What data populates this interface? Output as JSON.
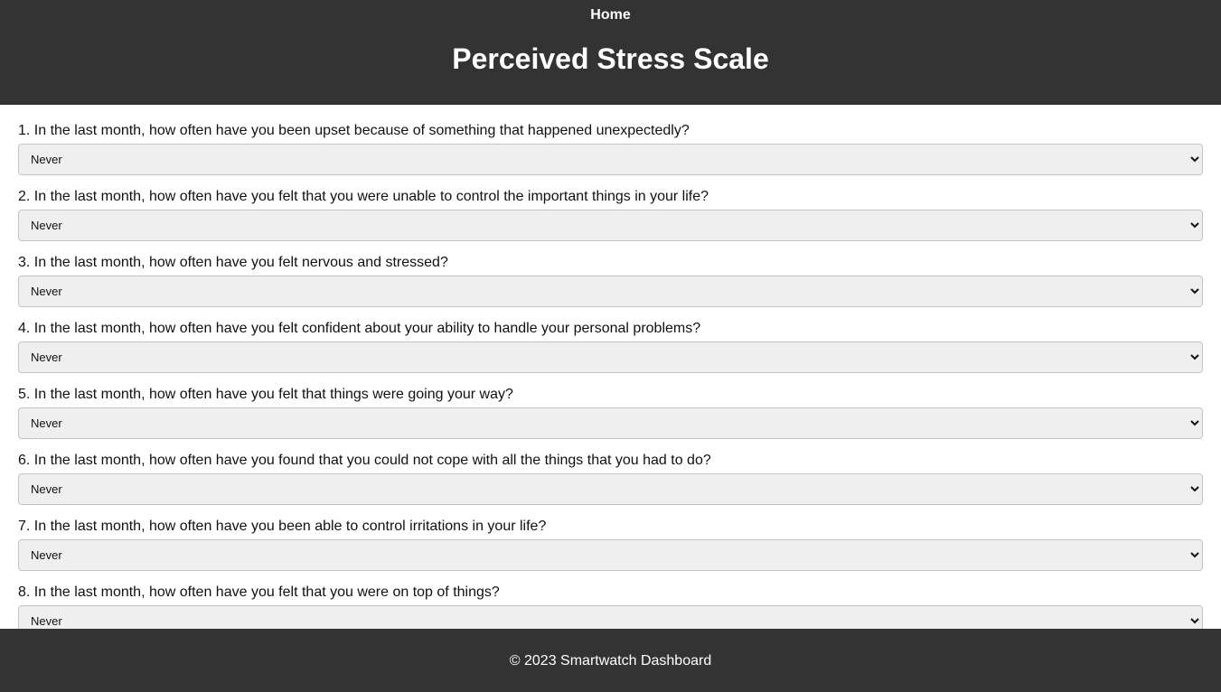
{
  "nav": {
    "home_label": "Home"
  },
  "page": {
    "title": "Perceived Stress Scale"
  },
  "questions": [
    {
      "text": "1. In the last month, how often have you been upset because of something that happened unexpectedly?",
      "selected": "Never"
    },
    {
      "text": "2. In the last month, how often have you felt that you were unable to control the important things in your life?",
      "selected": "Never"
    },
    {
      "text": "3. In the last month, how often have you felt nervous and stressed?",
      "selected": "Never"
    },
    {
      "text": "4. In the last month, how often have you felt confident about your ability to handle your personal problems?",
      "selected": "Never"
    },
    {
      "text": "5. In the last month, how often have you felt that things were going your way?",
      "selected": "Never"
    },
    {
      "text": "6. In the last month, how often have you found that you could not cope with all the things that you had to do?",
      "selected": "Never"
    },
    {
      "text": "7. In the last month, how often have you been able to control irritations in your life?",
      "selected": "Never"
    },
    {
      "text": "8. In the last month, how often have you felt that you were on top of things?",
      "selected": "Never"
    }
  ],
  "footer": {
    "text": "© 2023 Smartwatch Dashboard"
  },
  "colors": {
    "header_bg": "#333333",
    "footer_bg": "#333333",
    "select_bg": "#efefef"
  }
}
